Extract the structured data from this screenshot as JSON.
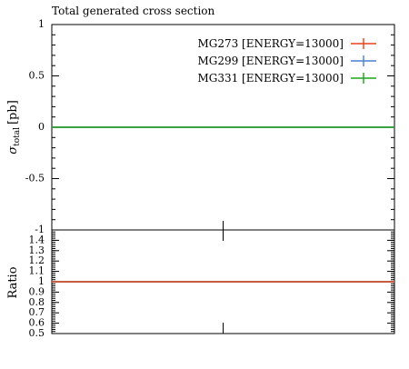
{
  "chart_data": {
    "type": "line",
    "title": "Total generated cross section",
    "ylabel_main": "σ",
    "ylabel_main_sub": "total",
    "ylabel_main_unit": "[pb]",
    "ylabel_ratio": "Ratio",
    "main_ylim": [
      -1,
      1
    ],
    "main_yticks": [
      "1",
      "0.5",
      "0",
      "-0.5",
      "-1"
    ],
    "ratio_ylim": [
      0.5,
      1.5
    ],
    "ratio_yticks": [
      "1.4",
      "1.3",
      "1.2",
      "1.1",
      "1",
      "0.9",
      "0.8",
      "0.7",
      "0.6",
      "0.5"
    ],
    "legend_position": "top-right",
    "series": [
      {
        "name": "MG273 [ENERGY=13000]",
        "color": "#e8421a",
        "value": 0,
        "ratio": 1
      },
      {
        "name": "MG299 [ENERGY=13000]",
        "color": "#4a7fd1",
        "value": 0,
        "ratio": 1
      },
      {
        "name": "MG331 [ENERGY=13000]",
        "color": "#1aa51a",
        "value": 0,
        "ratio": 1
      }
    ]
  }
}
